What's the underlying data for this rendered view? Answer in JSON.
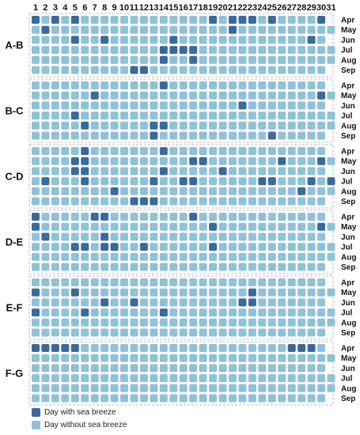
{
  "chart_data": {
    "type": "heatmap",
    "days": [
      "1",
      "2",
      "3",
      "4",
      "5",
      "6",
      "7",
      "8",
      "9",
      "10",
      "11",
      "12",
      "13",
      "14",
      "15",
      "16",
      "17",
      "18",
      "19",
      "20",
      "21",
      "22",
      "23",
      "24",
      "25",
      "26",
      "27",
      "28",
      "29",
      "30",
      "31"
    ],
    "months": [
      "Apr",
      "May",
      "Jun",
      "Jul",
      "Aug",
      "Sep"
    ],
    "month_lengths": [
      30,
      31,
      30,
      31,
      31,
      30
    ],
    "colors": {
      "breeze": "#3a6a9c",
      "no_breeze": "#91c1d6"
    },
    "legend": {
      "breeze": "Day with sea breeze",
      "no_breeze": "Day without sea breeze"
    },
    "panels": [
      {
        "label": "A-B",
        "rows": [
          "101010000000000000101110100001",
          "0100000000000000000010000000000",
          "000010010000001000000000000010",
          "0000000000000111100000000000000",
          "0000000000000100100000000000000",
          "000000000011000000000000000000"
        ]
      },
      {
        "label": "B-C",
        "rows": [
          "000000000000010000000000000000",
          "0000001000000000000000000000010",
          "000000000000000000000100000000",
          "0000100000000000000000000000000",
          "0000010000001100000000000000000",
          "000000000000100000000000100000"
        ]
      },
      {
        "label": "C-D",
        "rows": [
          "000001000000010000000000000000",
          "0000110000000000110000000100010",
          "000011000000010000010000000000",
          "0100010000001001100000011000101",
          "0000000010000000000000000001000",
          "000000000011100000000000000000"
        ]
      },
      {
        "label": "D-E",
        "rows": [
          "100000110000000010000000000000",
          "1000000000000000001000000000010",
          "010000010000000000000000000000",
          "0000110110010000001000000000000",
          "0000000000000000000000000000000",
          "000000000000000000000000000000"
        ]
      },
      {
        "label": "E-F",
        "rows": [
          "000000000000000000000000000000",
          "1000100000000000000000100000000",
          "000000010010000000000110000000",
          "1000010000000100000000000000000",
          "0000000000000000000000000000000",
          "000000000000000000000000000000"
        ]
      },
      {
        "label": "F-G",
        "rows": [
          "111110000000000000000000001110",
          "0000000000000000000000000000000",
          "000000000000000000000000000000",
          "0000000000000000000000000000000",
          "0000000000000000000000000000000",
          "000000000000000000000000000000"
        ]
      }
    ]
  }
}
